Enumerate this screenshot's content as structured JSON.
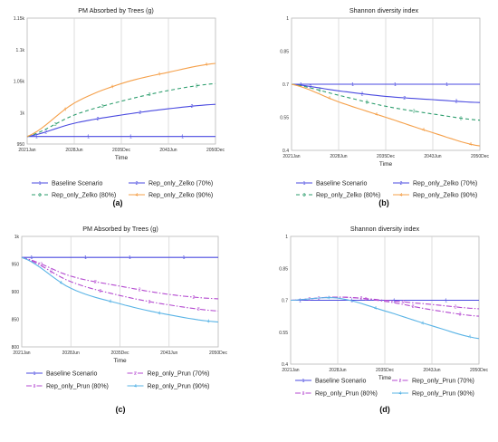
{
  "chart_data": [
    {
      "panel": "(a)",
      "type": "line",
      "title": "PM Absorbed by Trees (g)",
      "xlabel": "Time",
      "ylabel": "",
      "x": [
        "2021Jan",
        "2028Jun",
        "2035Dec",
        "2043Jun",
        "2050Dec"
      ],
      "yticks": [
        "950",
        "1k",
        "1.05k",
        "1.1k",
        "1.15k"
      ],
      "ytick_values": [
        950,
        1000,
        1050,
        1100,
        1150
      ],
      "ylim": [
        950,
        1150
      ],
      "grid": "vertical",
      "legend_position": "bottom",
      "series": [
        {
          "name": "Baseline Scenario",
          "marker": "1",
          "color": "#4a4ae0",
          "dash": "solid",
          "values": [
            962,
            962,
            962,
            962,
            962
          ]
        },
        {
          "name": "Rep_only_Zelko (70%)",
          "marker": "2",
          "color": "#4a4ae0",
          "dash": "solid",
          "values": [
            962,
            983,
            996,
            1006,
            1013
          ]
        },
        {
          "name": "Rep_only_Zelko (80%)",
          "marker": "3",
          "color": "#2e9e6e",
          "dash": "dashed",
          "values": [
            962,
            996,
            1018,
            1035,
            1046
          ]
        },
        {
          "name": "Rep_only_Zelko (90%)",
          "marker": "4",
          "color": "#f5a04a",
          "dash": "solid",
          "values": [
            962,
            1015,
            1046,
            1064,
            1078
          ]
        }
      ]
    },
    {
      "panel": "(b)",
      "type": "line",
      "title": "Shannon diversity index",
      "xlabel": "Time",
      "ylabel": "",
      "x": [
        "2021Jan",
        "2028Jun",
        "2035Dec",
        "2043Jun",
        "2050Dec"
      ],
      "yticks": [
        "0.4",
        "0.55",
        "0.7",
        "0.85",
        "1"
      ],
      "ytick_values": [
        0.4,
        0.55,
        0.7,
        0.85,
        1.0
      ],
      "ylim": [
        0.4,
        1.0
      ],
      "grid": "vertical",
      "legend_position": "bottom",
      "series": [
        {
          "name": "Baseline Scenario",
          "marker": "1",
          "color": "#4a4ae0",
          "dash": "solid",
          "values": [
            0.7,
            0.7,
            0.7,
            0.7,
            0.7
          ]
        },
        {
          "name": "Rep_only_Zelko (70%)",
          "marker": "2",
          "color": "#4a4ae0",
          "dash": "solid",
          "values": [
            0.7,
            0.67,
            0.645,
            0.63,
            0.617
          ]
        },
        {
          "name": "Rep_only_Zelko (80%)",
          "marker": "3",
          "color": "#2e9e6e",
          "dash": "dashed",
          "values": [
            0.7,
            0.65,
            0.6,
            0.565,
            0.537
          ]
        },
        {
          "name": "Rep_only_Zelko (90%)",
          "marker": "4",
          "color": "#f5a04a",
          "dash": "solid",
          "values": [
            0.7,
            0.62,
            0.55,
            0.48,
            0.42
          ]
        }
      ]
    },
    {
      "panel": "(c)",
      "type": "line",
      "title": "PM Absorbed by Trees (g)",
      "xlabel": "Time",
      "ylabel": "",
      "x": [
        "2021Jan",
        "2028Jun",
        "2035Dec",
        "2043Jun",
        "2050Dec"
      ],
      "yticks": [
        "800",
        "850",
        "900",
        "950",
        "1k"
      ],
      "ytick_values": [
        800,
        850,
        900,
        950,
        1000
      ],
      "ylim": [
        800,
        1000
      ],
      "grid": "vertical",
      "legend_position": "bottom",
      "series": [
        {
          "name": "Baseline Scenario",
          "marker": "1",
          "color": "#4a4ae0",
          "dash": "solid",
          "values": [
            962,
            962,
            962,
            962,
            962
          ]
        },
        {
          "name": "Rep_only_Prun (70%)",
          "marker": "2",
          "color": "#b44ad0",
          "dash": "dashdot",
          "values": [
            962,
            928,
            910,
            895,
            887
          ]
        },
        {
          "name": "Rep_only_Prun (80%)",
          "marker": "3",
          "color": "#b44ad0",
          "dash": "dashdot",
          "values": [
            962,
            918,
            893,
            876,
            865
          ]
        },
        {
          "name": "Rep_only_Prun (90%)",
          "marker": "4",
          "color": "#5ab4e6",
          "dash": "solid",
          "values": [
            962,
            906,
            878,
            858,
            845
          ]
        }
      ]
    },
    {
      "panel": "(d)",
      "type": "line",
      "title": "Shannon diversity index",
      "xlabel": "Time",
      "ylabel": "",
      "x": [
        "2021Jan",
        "2028Jun",
        "2035Dec",
        "2043Jun",
        "2050Dec"
      ],
      "yticks": [
        "0.4",
        "0.55",
        "0.7",
        "0.85",
        "1"
      ],
      "ytick_values": [
        0.4,
        0.55,
        0.7,
        0.85,
        1.0
      ],
      "ylim": [
        0.4,
        1.0
      ],
      "grid": "vertical",
      "legend_position": "bottom",
      "series": [
        {
          "name": "Baseline Scenario",
          "marker": "1",
          "color": "#4a4ae0",
          "dash": "solid",
          "values": [
            0.7,
            0.7,
            0.7,
            0.7,
            0.7
          ]
        },
        {
          "name": "Rep_only_Prun (70%)",
          "marker": "2",
          "color": "#b44ad0",
          "dash": "dashdot",
          "values": [
            0.7,
            0.715,
            0.7,
            0.68,
            0.66
          ]
        },
        {
          "name": "Rep_only_Prun (80%)",
          "marker": "3",
          "color": "#b44ad0",
          "dash": "dashdot",
          "values": [
            0.7,
            0.715,
            0.695,
            0.655,
            0.625
          ]
        },
        {
          "name": "Rep_only_Prun (90%)",
          "marker": "4",
          "color": "#5ab4e6",
          "dash": "solid",
          "values": [
            0.7,
            0.71,
            0.65,
            0.58,
            0.52
          ]
        }
      ]
    }
  ]
}
